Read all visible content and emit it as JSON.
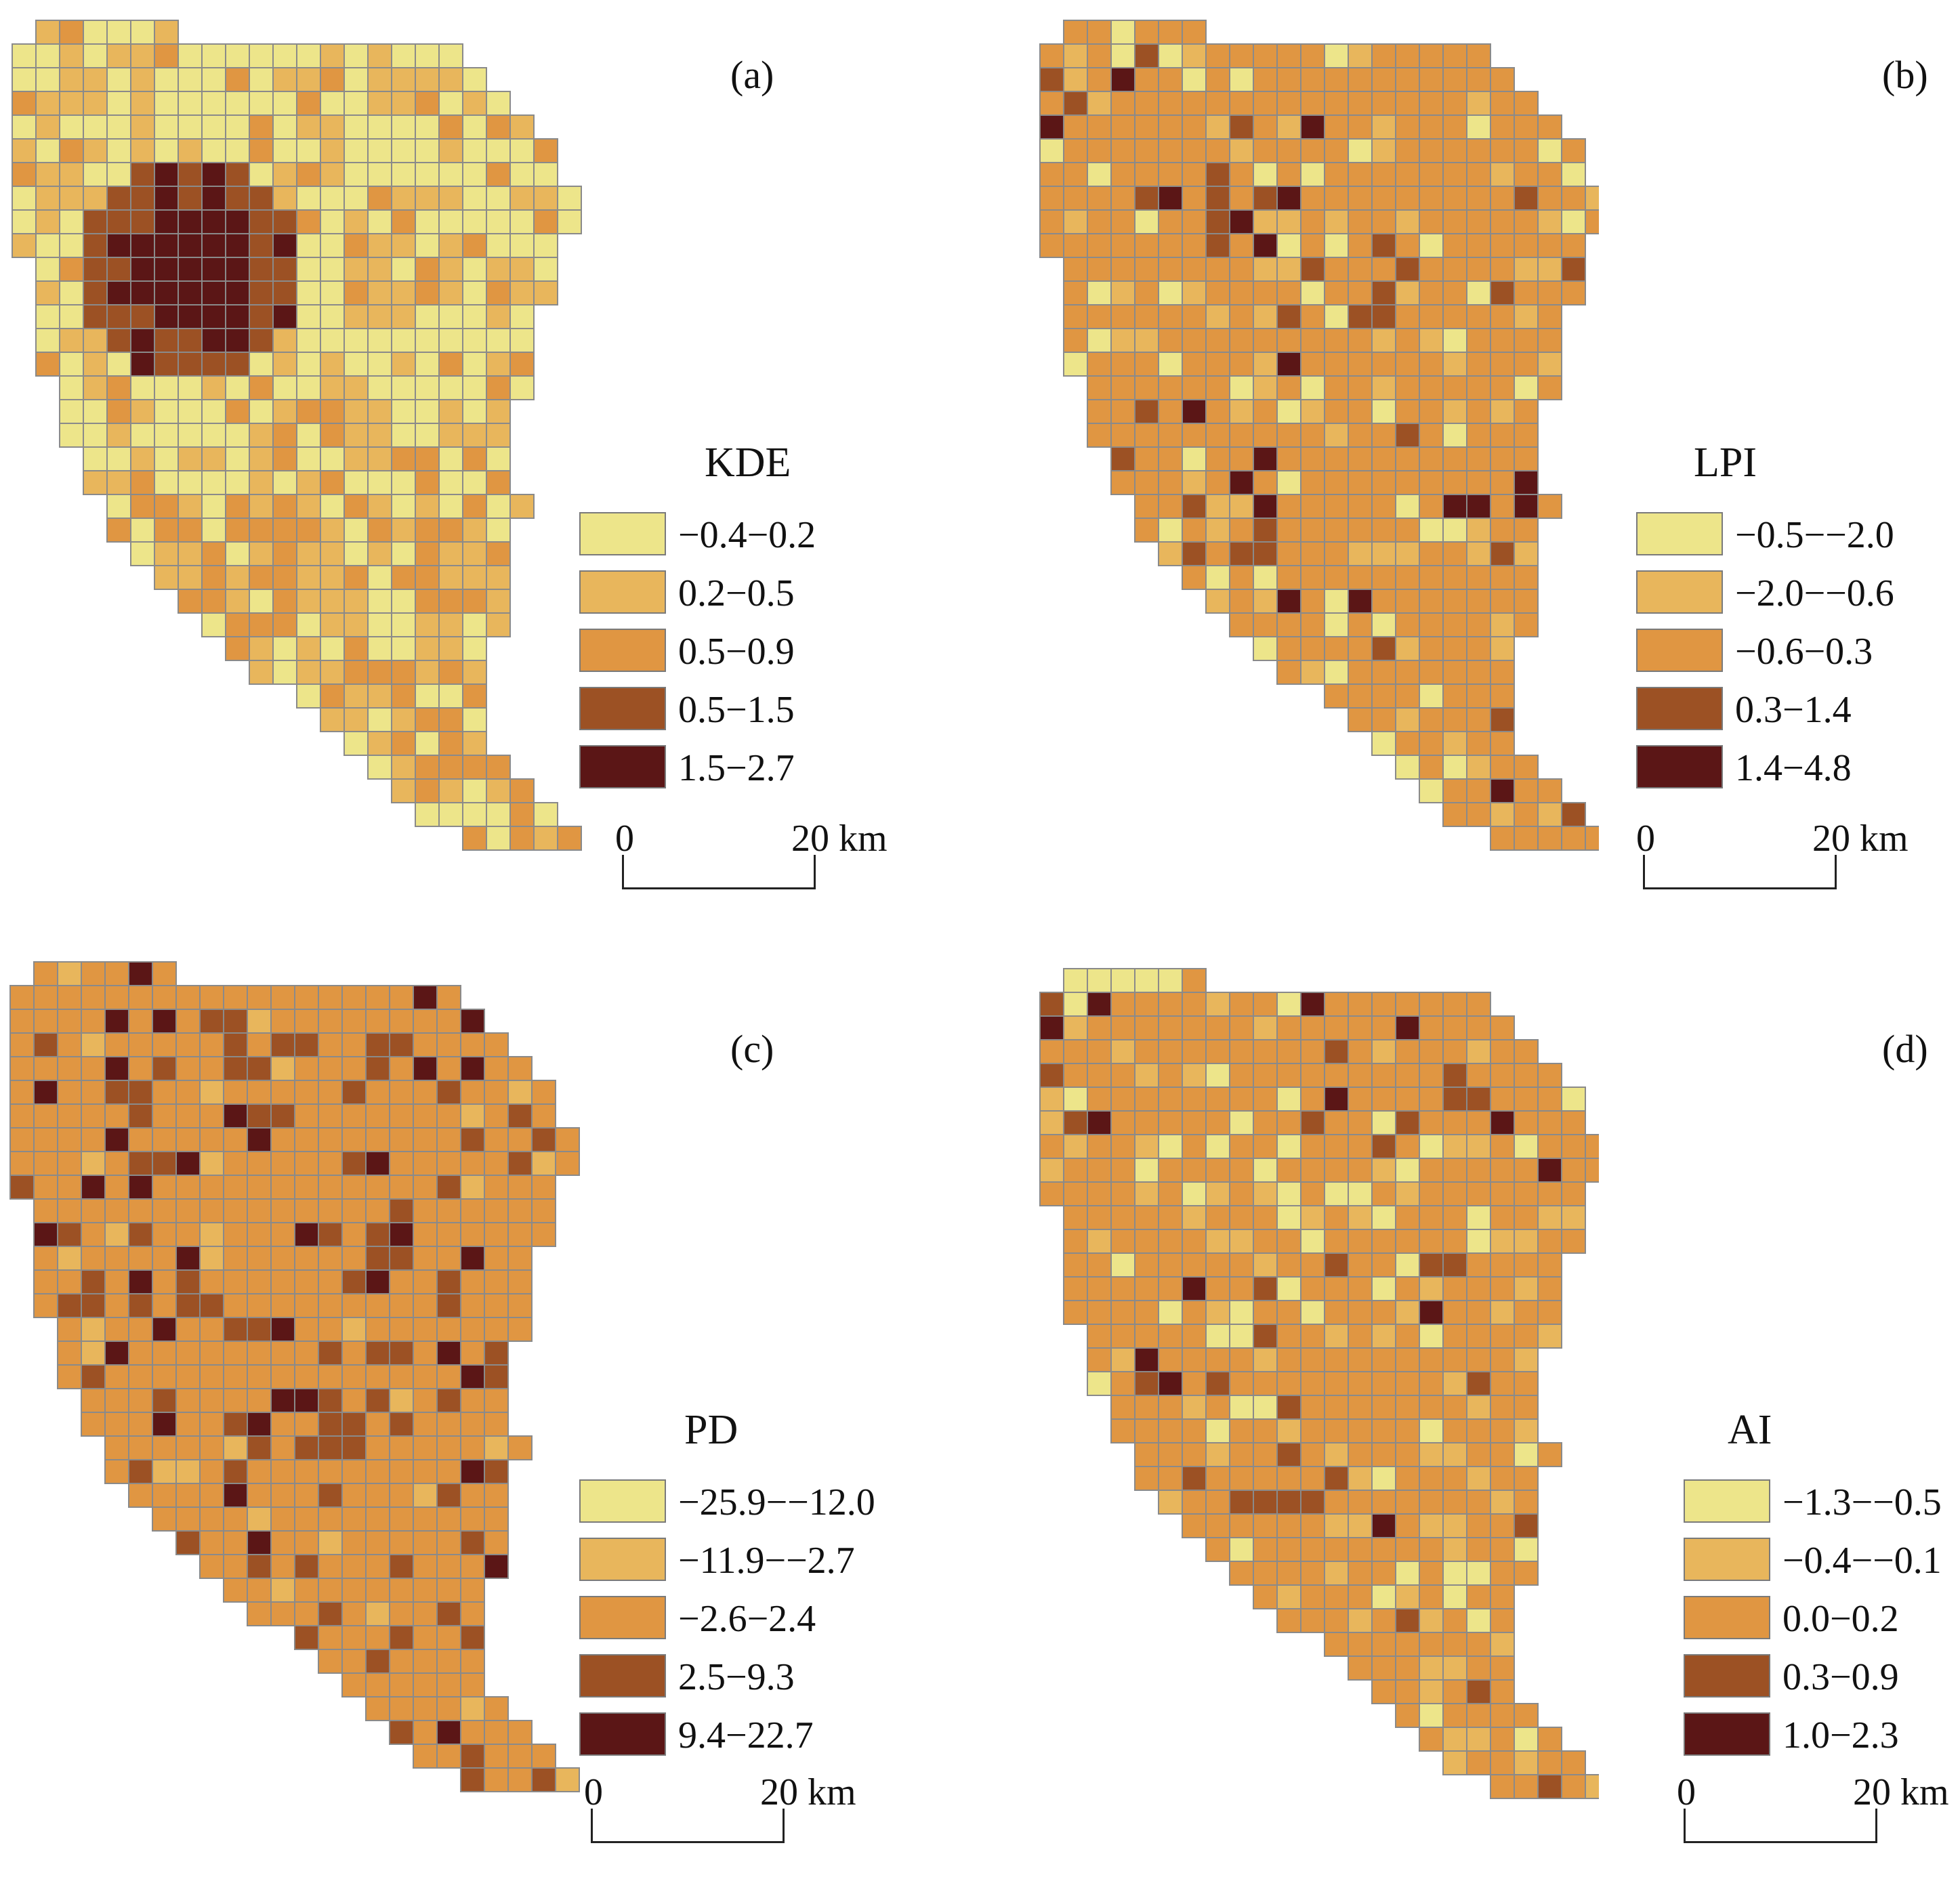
{
  "colors": [
    "#ede58a",
    "#e8b65c",
    "#e09642",
    "#9c5124",
    "#5b1616"
  ],
  "panels": [
    {
      "label": "(a)",
      "title": "KDE",
      "legend": [
        "−0.4−0.2",
        "0.2−0.5",
        "0.5−0.9",
        "0.5−1.5",
        "1.5−2.7"
      ],
      "scale": {
        "start": "0",
        "end": "20 km"
      }
    },
    {
      "label": "(b)",
      "title": "LPI",
      "legend": [
        "−0.5−−2.0",
        "−2.0−−0.6",
        "−0.6−0.3",
        "0.3−1.4",
        "1.4−4.8"
      ],
      "scale": {
        "start": "0",
        "end": "20 km"
      }
    },
    {
      "label": "(c)",
      "title": "PD",
      "legend": [
        "−25.9−−12.0",
        "−11.9−−2.7",
        "−2.6−2.4",
        "2.5−9.3",
        "9.4−22.7"
      ],
      "scale": {
        "start": "0",
        "end": "20 km"
      }
    },
    {
      "label": "(d)",
      "title": "AI",
      "legend": [
        "−1.3−−0.5",
        "−0.4−−0.1",
        "0.0−0.2",
        "0.3−0.9",
        "1.0−2.3"
      ],
      "scale": {
        "start": "0",
        "end": "20 km"
      }
    }
  ]
}
